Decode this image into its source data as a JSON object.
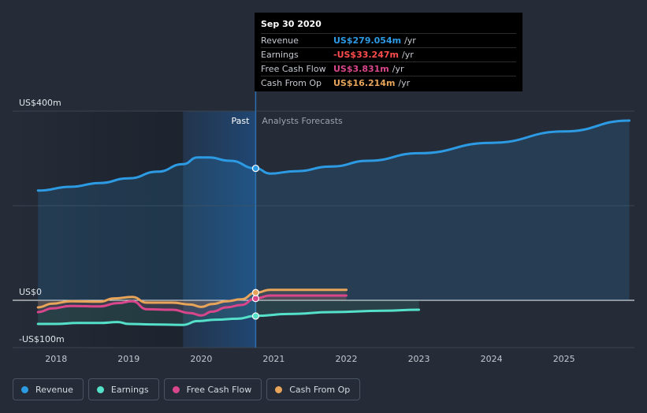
{
  "tooltip": {
    "date": "Sep 30 2020",
    "rows": [
      {
        "label": "Revenue",
        "value": "US$279.054m",
        "unit": "/yr",
        "color": "#2d9be4"
      },
      {
        "label": "Earnings",
        "value": "-US$33.247m",
        "unit": "/yr",
        "color": "#ff4c4c"
      },
      {
        "label": "Free Cash Flow",
        "value": "US$3.831m",
        "unit": "/yr",
        "color": "#d9468b"
      },
      {
        "label": "Cash From Op",
        "value": "US$16.214m",
        "unit": "/yr",
        "color": "#e8a55a"
      }
    ]
  },
  "labels": {
    "past": "Past",
    "forecast": "Analysts Forecasts"
  },
  "legend": [
    {
      "label": "Revenue",
      "color": "#2d9be4"
    },
    {
      "label": "Earnings",
      "color": "#54e0c9"
    },
    {
      "label": "Free Cash Flow",
      "color": "#d9468b"
    },
    {
      "label": "Cash From Op",
      "color": "#e8a55a"
    }
  ],
  "chart_data": {
    "type": "line",
    "title": "",
    "xlabel": "",
    "ylabel": "",
    "x_ticks": [
      "2018",
      "2019",
      "2020",
      "2021",
      "2022",
      "2023",
      "2024",
      "2025"
    ],
    "y_ticks": [
      {
        "value": 400,
        "label": "US$400m"
      },
      {
        "value": 0,
        "label": "US$0"
      },
      {
        "value": -100,
        "label": "-US$100m"
      }
    ],
    "xlim": [
      2017.4,
      2025.97
    ],
    "ylim": [
      -100,
      400
    ],
    "divider_x": 2020.75,
    "series": [
      {
        "name": "Revenue",
        "color": "#2d9be4",
        "area": true,
        "points": [
          [
            2017.75,
            232
          ],
          [
            2018.2,
            240
          ],
          [
            2018.6,
            248
          ],
          [
            2019.0,
            258
          ],
          [
            2019.4,
            272
          ],
          [
            2019.75,
            288
          ],
          [
            2019.95,
            302
          ],
          [
            2020.1,
            302
          ],
          [
            2020.4,
            295
          ],
          [
            2020.75,
            279
          ],
          [
            2020.95,
            268
          ],
          [
            2021.3,
            273
          ],
          [
            2021.8,
            283
          ],
          [
            2022.3,
            295
          ],
          [
            2023.0,
            311
          ],
          [
            2024.0,
            333
          ],
          [
            2025.0,
            357
          ],
          [
            2025.9,
            380
          ]
        ]
      },
      {
        "name": "Earnings",
        "color": "#54e0c9",
        "points": [
          [
            2017.75,
            -50
          ],
          [
            2018.0,
            -50
          ],
          [
            2018.3,
            -48
          ],
          [
            2018.6,
            -48
          ],
          [
            2018.85,
            -46
          ],
          [
            2019.0,
            -50
          ],
          [
            2019.3,
            -51
          ],
          [
            2019.75,
            -52
          ],
          [
            2019.95,
            -44
          ],
          [
            2020.2,
            -41
          ],
          [
            2020.5,
            -39
          ],
          [
            2020.75,
            -33
          ],
          [
            2021.2,
            -29
          ],
          [
            2021.8,
            -25
          ],
          [
            2022.5,
            -22
          ],
          [
            2023.0,
            -20
          ]
        ]
      },
      {
        "name": "Free Cash Flow",
        "color": "#d9468b",
        "points": [
          [
            2017.75,
            -25
          ],
          [
            2017.95,
            -17
          ],
          [
            2018.2,
            -12
          ],
          [
            2018.6,
            -13
          ],
          [
            2018.85,
            -6
          ],
          [
            2019.05,
            -2
          ],
          [
            2019.25,
            -19
          ],
          [
            2019.6,
            -20
          ],
          [
            2019.85,
            -27
          ],
          [
            2020.0,
            -32
          ],
          [
            2020.15,
            -24
          ],
          [
            2020.35,
            -15
          ],
          [
            2020.55,
            -10
          ],
          [
            2020.75,
            4
          ],
          [
            2020.95,
            10
          ],
          [
            2021.3,
            10
          ],
          [
            2022.0,
            10
          ]
        ]
      },
      {
        "name": "Cash From Op",
        "color": "#e8a55a",
        "points": [
          [
            2017.75,
            -15
          ],
          [
            2017.95,
            -7
          ],
          [
            2018.2,
            -2
          ],
          [
            2018.6,
            -3
          ],
          [
            2018.8,
            4
          ],
          [
            2019.05,
            7
          ],
          [
            2019.25,
            -5
          ],
          [
            2019.6,
            -5
          ],
          [
            2019.85,
            -9
          ],
          [
            2020.0,
            -14
          ],
          [
            2020.15,
            -8
          ],
          [
            2020.35,
            -2
          ],
          [
            2020.55,
            2
          ],
          [
            2020.75,
            16
          ],
          [
            2020.95,
            22
          ],
          [
            2021.3,
            22
          ],
          [
            2022.0,
            22
          ]
        ]
      }
    ],
    "markers": [
      {
        "series": "Revenue",
        "x": 2020.75,
        "y": 279.054
      },
      {
        "series": "Earnings",
        "x": 2020.75,
        "y": -33.247
      },
      {
        "series": "Free Cash Flow",
        "x": 2020.75,
        "y": 3.831
      },
      {
        "series": "Cash From Op",
        "x": 2020.75,
        "y": 16.214
      }
    ]
  }
}
